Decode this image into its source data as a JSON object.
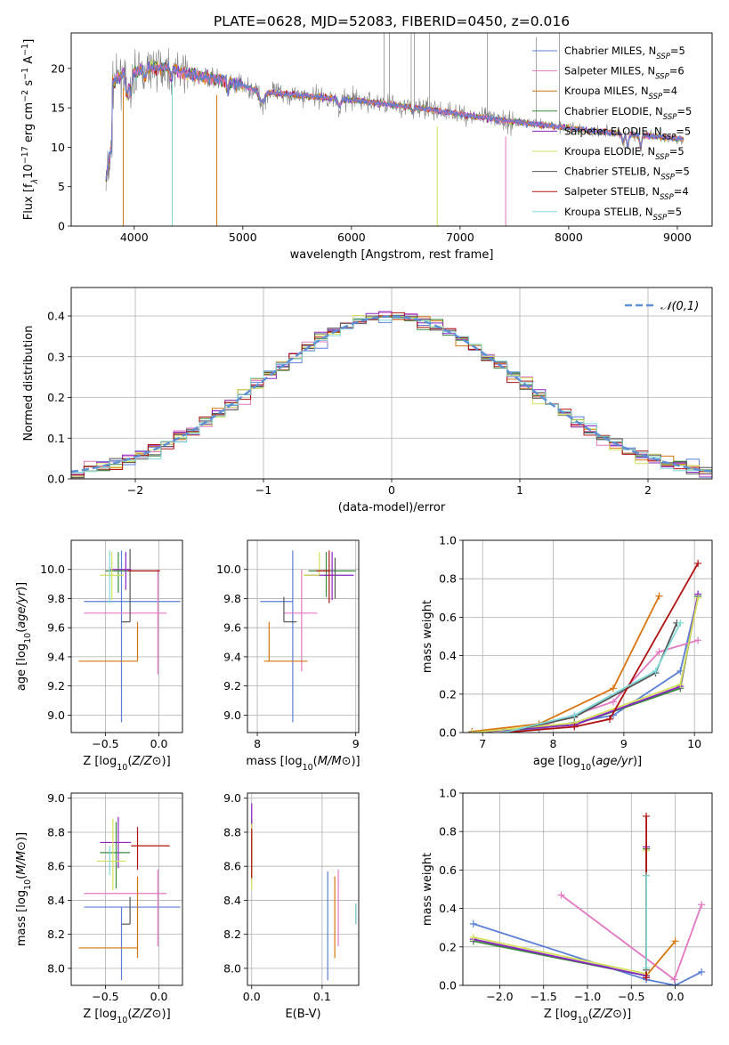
{
  "figure": {
    "title": "PLATE=0628, MJD=52083, FIBERID=0450, z=0.016"
  },
  "series_styles": [
    {
      "key": "chabrier_miles",
      "name": "Chabrier MILES, N",
      "sub": "SSP",
      "suffix": "=5",
      "color": "#5b7fd6"
    },
    {
      "key": "salpeter_miles",
      "name": "Salpeter MILES, N",
      "sub": "SSP",
      "suffix": "=6",
      "color": "#e377c2"
    },
    {
      "key": "kroupa_miles",
      "name": "Kroupa MILES, N",
      "sub": "SSP",
      "suffix": "=4",
      "color": "#d8740b"
    },
    {
      "key": "chabrier_elodie",
      "name": "Chabrier ELODIE, N",
      "sub": "SSP",
      "suffix": "=5",
      "color": "#3c8a3c"
    },
    {
      "key": "salpeter_elodie",
      "name": "Salpeter ELODIE, N",
      "sub": "SSP",
      "suffix": "=5",
      "color": "#8a22c4"
    },
    {
      "key": "kroupa_elodie",
      "name": "Kroupa ELODIE, N",
      "sub": "SSP",
      "suffix": "=5",
      "color": "#d2e05a"
    },
    {
      "key": "chabrier_stelib",
      "name": "Chabrier STELIB, N",
      "sub": "SSP",
      "suffix": "=5",
      "color": "#555555"
    },
    {
      "key": "salpeter_stelib",
      "name": "Salpeter STELIB, N",
      "sub": "SSP",
      "suffix": "=4",
      "color": "#b01010"
    },
    {
      "key": "kroupa_stelib",
      "name": "Kroupa STELIB, N",
      "sub": "SSP",
      "suffix": "=5",
      "color": "#7fd8d8"
    }
  ],
  "chart_data": [
    {
      "id": "spectrum",
      "type": "line",
      "xlabel": "wavelength [Angstrom, rest frame]",
      "ylabel_parts": [
        "Flux [f",
        "λ",
        "10",
        "−17",
        " erg cm",
        "−2",
        " s",
        "−1",
        " A",
        "−1",
        "]"
      ],
      "xlim": [
        3420,
        9320
      ],
      "ylim": [
        0,
        24.5
      ],
      "xticks": [
        4000,
        5000,
        6000,
        7000,
        8000,
        9000
      ],
      "yticks": [
        0,
        5,
        10,
        15,
        20
      ],
      "continuum": {
        "x": [
          3800,
          3900,
          4000,
          4100,
          4300,
          4500,
          4800,
          5200,
          5600,
          6000,
          6500,
          7000,
          7400,
          7800,
          8200,
          8600,
          9000,
          9060
        ],
        "y": [
          18.0,
          19.5,
          19.5,
          20.0,
          20.2,
          19.3,
          18.5,
          17.0,
          16.5,
          16.0,
          15.2,
          14.2,
          13.4,
          12.8,
          12.1,
          11.6,
          11.1,
          11.0
        ]
      },
      "legend_position": "upper right"
    },
    {
      "id": "residual_hist",
      "type": "step-histogram",
      "xlabel": "(data-model)/error",
      "ylabel": "Normed distribution",
      "xlim": [
        -2.5,
        2.5
      ],
      "ylim": [
        0,
        0.47
      ],
      "xticks": [
        -2,
        -1,
        0,
        1,
        2
      ],
      "yticks": [
        0.0,
        0.1,
        0.2,
        0.3,
        0.4
      ],
      "bin_width": 0.1,
      "reference": {
        "name": "𝒩(0,1)",
        "color": "#5b8fd6",
        "style": "dashed"
      },
      "legend_position": "upper right",
      "grid": true
    },
    {
      "id": "age_vs_z",
      "type": "errorbar",
      "xlabel": "Z [log10(Z/Z⊙)]",
      "ylabel": "age  [log10(age/yr)]",
      "xlim": [
        -0.82,
        0.22
      ],
      "ylim": [
        8.88,
        10.2
      ],
      "xticks": [
        -0.5,
        0.0
      ],
      "yticks": [
        9.0,
        9.2,
        9.4,
        9.6,
        9.8,
        10.0
      ],
      "points": [
        {
          "s": "chabrier_miles",
          "x": -0.35,
          "xerr": [
            0.35,
            0.55
          ],
          "y": 9.78,
          "yerr": [
            0.83,
            0.35
          ]
        },
        {
          "s": "salpeter_miles",
          "x": -0.01,
          "xerr": [
            0.0,
            0.0
          ],
          "y": 9.7,
          "yerr": [
            0.42,
            0.3
          ]
        },
        {
          "s": "salpeter_miles",
          "x": -0.2,
          "xerr": [
            0.5,
            0.27
          ],
          "y": 9.7,
          "yerr": [
            0,
            0
          ]
        },
        {
          "s": "kroupa_miles",
          "x": -0.2,
          "xerr": [
            0.55,
            0.0
          ],
          "y": 9.37,
          "yerr": [
            0,
            0.27
          ]
        },
        {
          "s": "chabrier_stelib",
          "x": -0.27,
          "xerr": [
            0.08,
            0.0
          ],
          "y": 9.64,
          "yerr": [
            0,
            0.5
          ]
        },
        {
          "s": "chabrier_elodie",
          "x": -0.38,
          "xerr": [
            0.12,
            0.12
          ],
          "y": 9.99,
          "yerr": [
            0.15,
            0.13
          ]
        },
        {
          "s": "salpeter_elodie",
          "x": -0.31,
          "xerr": [
            0.15,
            0.05
          ],
          "y": 10.0,
          "yerr": [
            0.14,
            0.12
          ]
        },
        {
          "s": "kroupa_elodie",
          "x": -0.44,
          "xerr": [
            0.11,
            0.11
          ],
          "y": 9.96,
          "yerr": [
            0.17,
            0.16
          ]
        },
        {
          "s": "salpeter_stelib",
          "x": -0.2,
          "xerr": [
            0.09,
            0.21
          ],
          "y": 9.99,
          "yerr": [
            0,
            0
          ]
        },
        {
          "s": "kroupa_stelib",
          "x": -0.46,
          "xerr": [
            0.0,
            0.0
          ],
          "y": 9.99,
          "yerr": [
            0.22,
            0.14
          ]
        }
      ],
      "grid": true
    },
    {
      "id": "age_vs_mass",
      "type": "errorbar",
      "xlabel": "mass [log10(M/M⊙)]",
      "ylabel": "",
      "xlim": [
        7.9,
        9.03
      ],
      "ylim": [
        8.88,
        10.2
      ],
      "xticks": [
        8,
        9
      ],
      "yticks": [
        9.0,
        9.2,
        9.4,
        9.6,
        9.8,
        10.0
      ],
      "points": [
        {
          "s": "chabrier_miles",
          "x": 8.36,
          "xerr": [
            0.33,
            0.0
          ],
          "y": 9.78,
          "yerr": [
            0.83,
            0.35
          ]
        },
        {
          "s": "salpeter_miles",
          "x": 8.45,
          "xerr": [
            0.18,
            0.16
          ],
          "y": 9.7,
          "yerr": [
            0.4,
            0.3
          ]
        },
        {
          "s": "kroupa_miles",
          "x": 8.12,
          "xerr": [
            0.05,
            0.39
          ],
          "y": 9.37,
          "yerr": [
            0,
            0.27
          ]
        },
        {
          "s": "chabrier_stelib",
          "x": 8.27,
          "xerr": [
            0,
            0.13
          ],
          "y": 9.64,
          "yerr": [
            0,
            0.17
          ]
        },
        {
          "s": "chabrier_elodie",
          "x": 8.7,
          "xerr": [
            0.18,
            0.3
          ],
          "y": 9.99,
          "yerr": [
            0.18,
            0.13
          ]
        },
        {
          "s": "salpeter_elodie",
          "x": 8.76,
          "xerr": [
            0.28,
            0.22
          ],
          "y": 9.96,
          "yerr": [
            0.17,
            0.16
          ]
        },
        {
          "s": "kroupa_elodie",
          "x": 8.63,
          "xerr": [
            0.16,
            0.0
          ],
          "y": 9.96,
          "yerr": [
            0,
            0.16
          ]
        },
        {
          "s": "salpeter_stelib",
          "x": 8.73,
          "xerr": [
            0.13,
            0.0
          ],
          "y": 9.99,
          "yerr": [
            0.22,
            0.14
          ]
        },
        {
          "s": "chabrier_stelib",
          "x": 8.79,
          "xerr": [
            0,
            0
          ],
          "y": 10.0,
          "yerr": [
            0.2,
            0.08
          ]
        }
      ],
      "grid": true
    },
    {
      "id": "mass_weight_vs_age",
      "type": "line",
      "xlabel": "age  [log10(age/yr)]",
      "ylabel": "mass weight",
      "xlim": [
        6.72,
        10.25
      ],
      "ylim": [
        0,
        1.0
      ],
      "xticks": [
        7,
        8,
        9,
        10
      ],
      "yticks": [
        0.0,
        0.2,
        0.4,
        0.6,
        0.8,
        1.0
      ],
      "series": [
        {
          "s": "chabrier_miles",
          "x": [
            6.85,
            7.8,
            8.85,
            9.8,
            10.05
          ],
          "y": [
            0.005,
            0.02,
            0.09,
            0.32,
            0.71
          ]
        },
        {
          "s": "salpeter_miles",
          "x": [
            6.85,
            7.8,
            8.85,
            9.5,
            10.05
          ],
          "y": [
            0.002,
            0.03,
            0.16,
            0.42,
            0.48
          ]
        },
        {
          "s": "kroupa_miles",
          "x": [
            6.85,
            7.8,
            8.85,
            9.5
          ],
          "y": [
            0.005,
            0.045,
            0.23,
            0.71
          ]
        },
        {
          "s": "chabrier_elodie",
          "x": [
            6.85,
            8.3,
            9.8,
            10.05
          ],
          "y": [
            0.0,
            0.04,
            0.23,
            0.71
          ]
        },
        {
          "s": "salpeter_elodie",
          "x": [
            6.85,
            8.3,
            9.8,
            10.05
          ],
          "y": [
            0.0,
            0.04,
            0.24,
            0.72
          ]
        },
        {
          "s": "kroupa_elodie",
          "x": [
            6.85,
            8.3,
            9.8,
            10.05
          ],
          "y": [
            0.0,
            0.05,
            0.25,
            0.7
          ]
        },
        {
          "s": "chabrier_stelib",
          "x": [
            7.3,
            8.3,
            9.45,
            9.75
          ],
          "y": [
            0.0,
            0.08,
            0.31,
            0.57
          ]
        },
        {
          "s": "salpeter_stelib",
          "x": [
            7.3,
            8.3,
            8.8,
            10.05
          ],
          "y": [
            0.0,
            0.03,
            0.07,
            0.88
          ]
        },
        {
          "s": "kroupa_stelib",
          "x": [
            7.3,
            8.3,
            9.45,
            9.8
          ],
          "y": [
            0.0,
            0.09,
            0.32,
            0.57
          ]
        }
      ],
      "grid": true
    },
    {
      "id": "mass_vs_z",
      "type": "errorbar",
      "xlabel": "Z [log10(Z/Z⊙)]",
      "ylabel": "mass [log10(M/M⊙)]",
      "xlim": [
        -0.82,
        0.22
      ],
      "ylim": [
        7.9,
        9.03
      ],
      "xticks": [
        -0.5,
        0.0
      ],
      "yticks": [
        8.0,
        8.2,
        8.4,
        8.6,
        8.8,
        9.0
      ],
      "points": [
        {
          "s": "chabrier_miles",
          "x": -0.35,
          "xerr": [
            0.35,
            0.55
          ],
          "y": 8.36,
          "yerr": [
            0.43,
            0.0
          ]
        },
        {
          "s": "salpeter_miles",
          "x": -0.2,
          "xerr": [
            0.5,
            0.27
          ],
          "y": 8.44,
          "yerr": [
            0,
            0
          ]
        },
        {
          "s": "salpeter_miles",
          "x": -0.01,
          "xerr": [
            0,
            0
          ],
          "y": 8.44,
          "yerr": [
            0.31,
            0.14
          ]
        },
        {
          "s": "kroupa_miles",
          "x": -0.2,
          "xerr": [
            0.55,
            0.0
          ],
          "y": 8.12,
          "yerr": [
            0.06,
            0.42
          ]
        },
        {
          "s": "chabrier_stelib",
          "x": -0.27,
          "xerr": [
            0.08,
            0.0
          ],
          "y": 8.26,
          "yerr": [
            0,
            0.16
          ]
        },
        {
          "s": "chabrier_elodie",
          "x": -0.4,
          "xerr": [
            0.15,
            0.13
          ],
          "y": 8.68,
          "yerr": [
            0.21,
            0.18
          ]
        },
        {
          "s": "salpeter_elodie",
          "x": -0.38,
          "xerr": [
            0.17,
            0.12
          ],
          "y": 8.74,
          "yerr": [
            0.15,
            0.15
          ]
        },
        {
          "s": "kroupa_elodie",
          "x": -0.43,
          "xerr": [
            0.15,
            0.12
          ],
          "y": 8.63,
          "yerr": [
            0.17,
            0.25
          ]
        },
        {
          "s": "salpeter_stelib",
          "x": -0.2,
          "xerr": [
            0.06,
            0.3
          ],
          "y": 8.72,
          "yerr": [
            0.14,
            0.11
          ]
        },
        {
          "s": "kroupa_stelib",
          "x": -0.46,
          "xerr": [
            0,
            0
          ],
          "y": 8.72,
          "yerr": [
            0.17,
            0.0
          ]
        }
      ],
      "grid": true
    },
    {
      "id": "mass_vs_ebv",
      "type": "errorbar",
      "xlabel": "E(B-V)",
      "ylabel": "",
      "xlim": [
        -0.006,
        0.152
      ],
      "ylim": [
        7.9,
        9.03
      ],
      "xticks": [
        0.0,
        0.1
      ],
      "yticks": [
        8.0,
        8.2,
        8.4,
        8.6,
        8.8,
        9.0
      ],
      "points": [
        {
          "s": "chabrier_miles",
          "x": 0.108,
          "xerr": [
            0,
            0
          ],
          "y": 8.36,
          "yerr": [
            0.43,
            0.21
          ]
        },
        {
          "s": "salpeter_miles",
          "x": 0.123,
          "xerr": [
            0,
            0
          ],
          "y": 8.44,
          "yerr": [
            0.31,
            0.14
          ]
        },
        {
          "s": "kroupa_miles",
          "x": 0.118,
          "xerr": [
            0,
            0
          ],
          "y": 8.3,
          "yerr": [
            0.24,
            0.24
          ]
        },
        {
          "s": "chabrier_elodie",
          "x": 0.0,
          "xerr": [
            0,
            0
          ],
          "y": 8.7,
          "yerr": [
            0.18,
            0.18
          ]
        },
        {
          "s": "salpeter_elodie",
          "x": 0.0,
          "xerr": [
            0,
            0
          ],
          "y": 8.75,
          "yerr": [
            0.15,
            0.22
          ]
        },
        {
          "s": "kroupa_elodie",
          "x": 0.0,
          "xerr": [
            0,
            0
          ],
          "y": 8.65,
          "yerr": [
            0.19,
            0.2
          ]
        },
        {
          "s": "salpeter_stelib",
          "x": 0.0,
          "xerr": [
            0,
            0
          ],
          "y": 8.62,
          "yerr": [
            0.09,
            0.2
          ]
        },
        {
          "s": "chabrier_stelib",
          "x": 0.148,
          "xerr": [
            0,
            0
          ],
          "y": 8.32,
          "yerr": [
            0.06,
            0.06
          ]
        },
        {
          "s": "kroupa_stelib",
          "x": 0.148,
          "xerr": [
            0,
            0
          ],
          "y": 8.32,
          "yerr": [
            0.06,
            0.06
          ]
        }
      ],
      "grid": true
    },
    {
      "id": "mass_weight_vs_z",
      "type": "line",
      "xlabel": "Z [log10(Z/Z⊙)]",
      "ylabel": "mass weight",
      "xlim": [
        -2.42,
        0.42
      ],
      "ylim": [
        0,
        1.0
      ],
      "xticks": [
        -2.0,
        -1.5,
        -1.0,
        -0.5,
        0.0
      ],
      "yticks": [
        0.0,
        0.2,
        0.4,
        0.6,
        0.8,
        1.0
      ],
      "series": [
        {
          "s": "chabrier_miles",
          "x": [
            -2.3,
            -0.33,
            0.0,
            0.3
          ],
          "y": [
            0.32,
            0.03,
            0.0,
            0.07
          ]
        },
        {
          "s": "salpeter_miles",
          "x": [
            -1.3,
            -0.01,
            0.3
          ],
          "y": [
            0.47,
            0.03,
            0.42
          ]
        },
        {
          "s": "kroupa_miles",
          "x": [
            -0.33,
            -0.33,
            0.0
          ],
          "y": [
            0.71,
            0.05,
            0.23
          ]
        },
        {
          "s": "chabrier_elodie",
          "x": [
            -2.3,
            -0.33,
            -0.33
          ],
          "y": [
            0.23,
            0.05,
            0.71
          ]
        },
        {
          "s": "salpeter_elodie",
          "x": [
            -2.3,
            -0.33,
            -0.33
          ],
          "y": [
            0.24,
            0.05,
            0.72
          ]
        },
        {
          "s": "kroupa_elodie",
          "x": [
            -2.3,
            -0.33,
            -0.33
          ],
          "y": [
            0.25,
            0.06,
            0.7
          ]
        },
        {
          "s": "chabrier_stelib",
          "x": [
            -0.33,
            -0.33
          ],
          "y": [
            0.08,
            0.57
          ]
        },
        {
          "s": "salpeter_stelib",
          "x": [
            -0.33,
            -0.33
          ],
          "y": [
            0.04,
            0.88
          ]
        },
        {
          "s": "kroupa_stelib",
          "x": [
            -0.33,
            -0.33
          ],
          "y": [
            0.09,
            0.57
          ]
        }
      ],
      "grid": true
    }
  ]
}
